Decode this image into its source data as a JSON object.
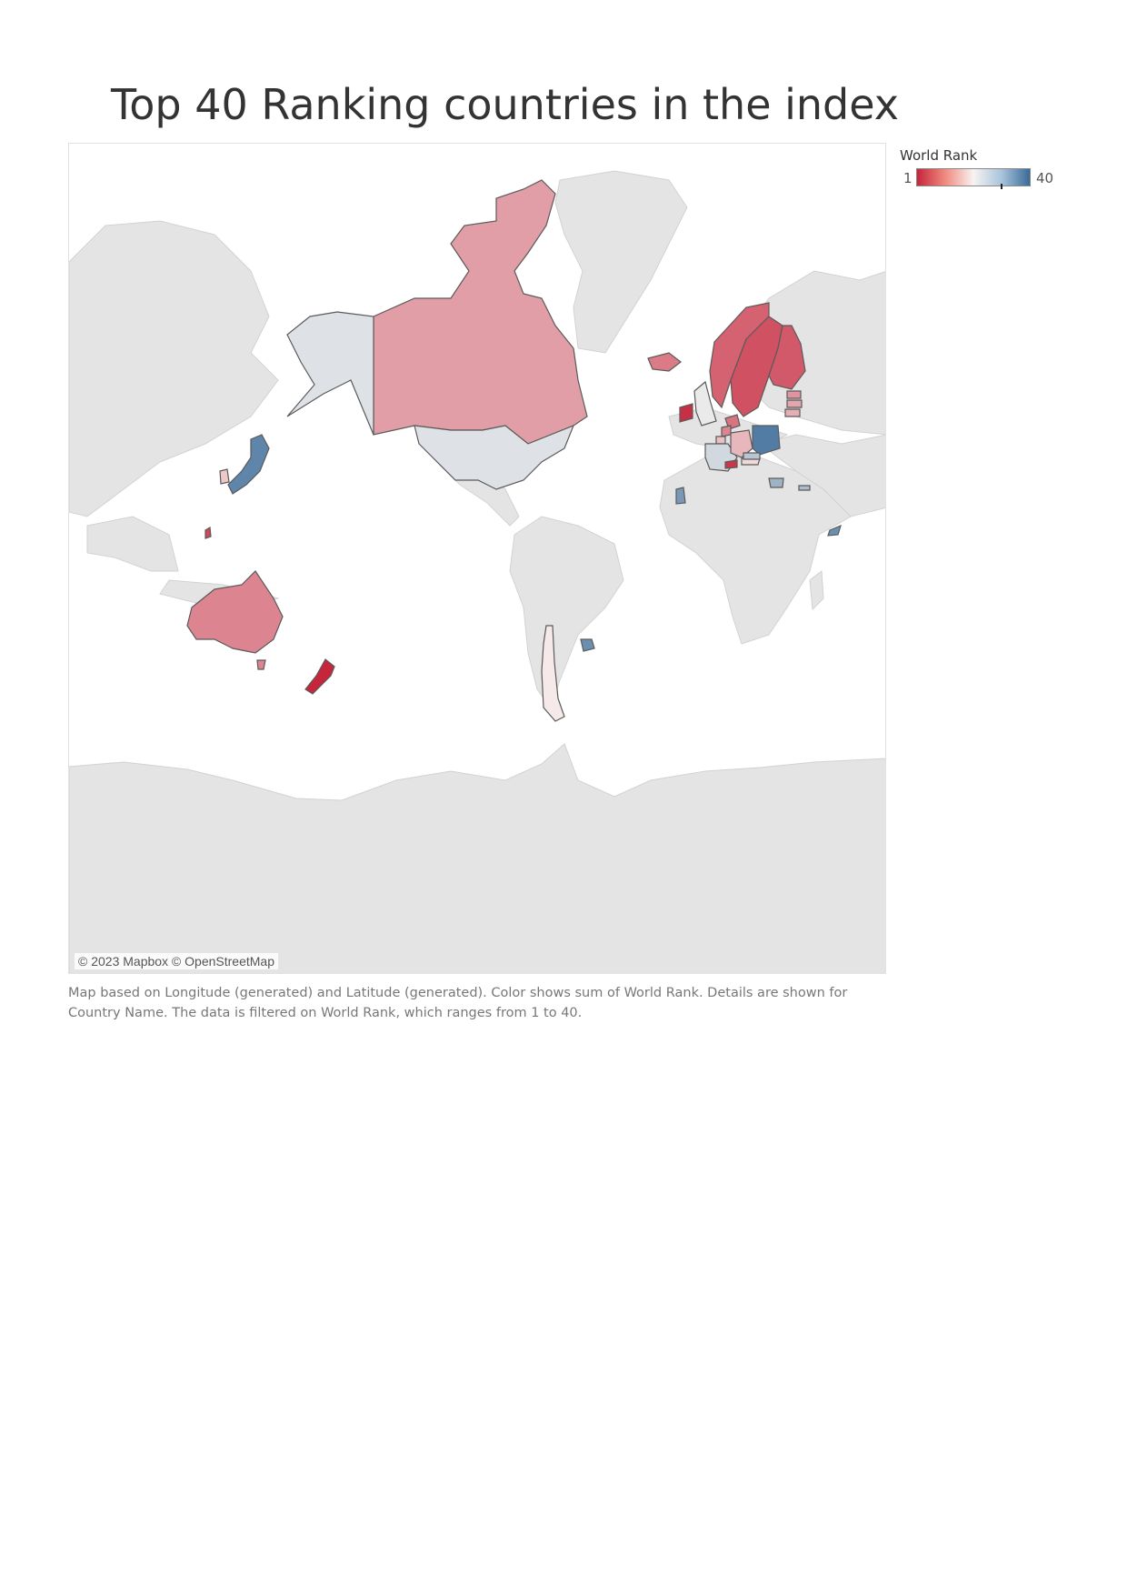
{
  "title": "Top 40 Ranking countries in the index",
  "legend": {
    "title": "World Rank",
    "min": "1",
    "max": "40",
    "marker_value": 30
  },
  "attribution": "© 2023 Mapbox © OpenStreetMap",
  "caption": "Map based on Longitude (generated) and Latitude (generated).  Color shows sum of World Rank.  Details are shown for Country Name. The data is filtered on World Rank, which ranges from 1 to 40.",
  "colors": {
    "low": "#c5263c",
    "mid": "#f7f3f1",
    "high": "#3a6a98",
    "land": "#e4e4e4",
    "ocean": "#ffffff",
    "border": "#5a5a5a"
  },
  "chart_data": {
    "type": "map",
    "projection": "mercator",
    "color_scale": {
      "field": "World Rank",
      "min": 1,
      "max": 40,
      "scheme": "red-white-blue diverging"
    },
    "regions": [
      {
        "id": "canada",
        "rank": 15
      },
      {
        "id": "alaska",
        "rank": 27
      },
      {
        "id": "usa",
        "rank": 27
      },
      {
        "id": "iceland",
        "rank": 11
      },
      {
        "id": "norway",
        "rank": 8
      },
      {
        "id": "sweden",
        "rank": 6
      },
      {
        "id": "finland",
        "rank": 7
      },
      {
        "id": "denmark",
        "rank": 10
      },
      {
        "id": "ireland",
        "rank": 2
      },
      {
        "id": "uk",
        "rank": 26
      },
      {
        "id": "netherlands",
        "rank": 12
      },
      {
        "id": "belgium",
        "rank": 19
      },
      {
        "id": "france",
        "rank": 28
      },
      {
        "id": "germany",
        "rank": 18
      },
      {
        "id": "switzerland",
        "rank": 3
      },
      {
        "id": "austria",
        "rank": 22
      },
      {
        "id": "poland",
        "rank": 38
      },
      {
        "id": "czechia",
        "rank": 30
      },
      {
        "id": "estonia",
        "rank": 14
      },
      {
        "id": "latvia",
        "rank": 16
      },
      {
        "id": "lithuania",
        "rank": 17
      },
      {
        "id": "portugal",
        "rank": 35
      },
      {
        "id": "greece",
        "rank": 32
      },
      {
        "id": "cyprus",
        "rank": 31
      },
      {
        "id": "uae",
        "rank": 36
      },
      {
        "id": "japan",
        "rank": 37
      },
      {
        "id": "south-korea",
        "rank": 20
      },
      {
        "id": "taiwan",
        "rank": 5
      },
      {
        "id": "australia",
        "rank": 12
      },
      {
        "id": "tasmania",
        "rank": 12
      },
      {
        "id": "new-zealand",
        "rank": 1
      },
      {
        "id": "chile",
        "rank": 24
      },
      {
        "id": "uruguay",
        "rank": 36
      }
    ]
  }
}
